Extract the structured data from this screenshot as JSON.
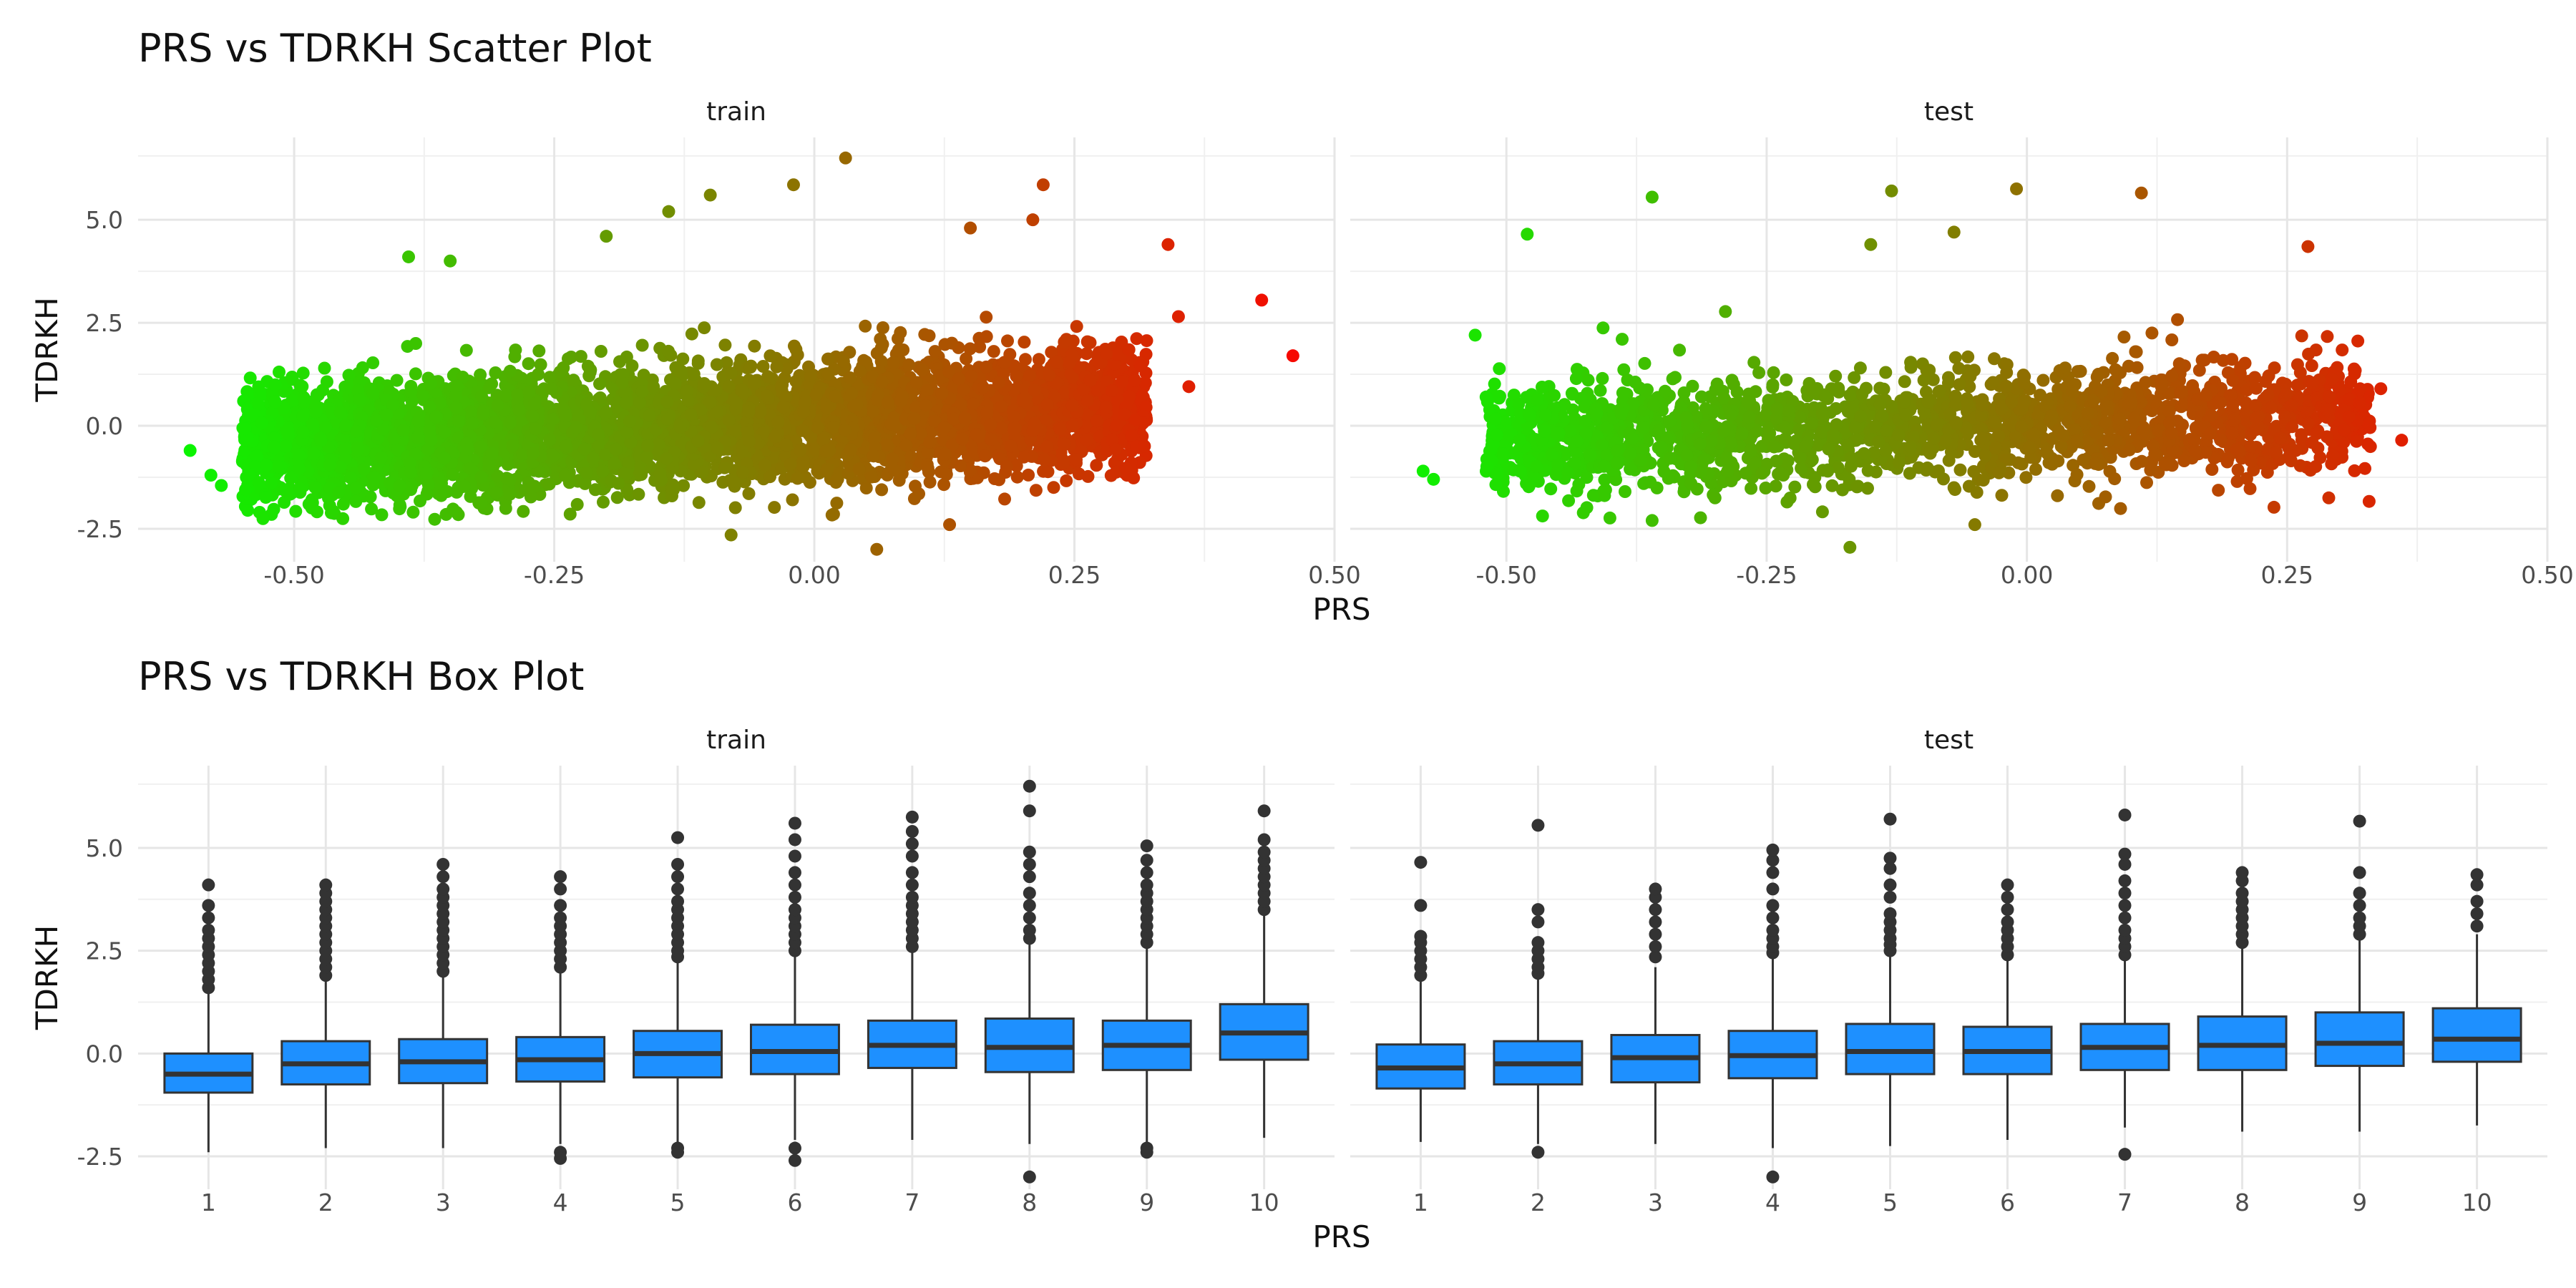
{
  "chart_data": [
    {
      "type": "scatter",
      "title": "PRS vs TDRKH Scatter Plot",
      "xlabel": "PRS",
      "ylabel": "TDRKH",
      "xlim": [
        -0.65,
        0.5
      ],
      "ylim": [
        -3.3,
        7.0
      ],
      "x_ticks": [
        "-0.50",
        "-0.25",
        "0.00",
        "0.25",
        "0.50"
      ],
      "y_ticks": [
        "-2.5",
        "0.0",
        "2.5",
        "5.0"
      ],
      "color_scale": {
        "low": "#00ff00",
        "high": "#ff0000",
        "mapped_to": "PRS"
      },
      "grid": true,
      "panels": [
        {
          "label": "train",
          "core": {
            "x_min": -0.55,
            "x_max": 0.32,
            "y_sd": 0.75,
            "trend": [
              -0.5,
              0.5
            ],
            "n": 4500
          },
          "points": [
            {
              "x": -0.6,
              "y": -0.6
            },
            {
              "x": -0.58,
              "y": -1.2
            },
            {
              "x": -0.57,
              "y": -1.45
            },
            {
              "x": 0.43,
              "y": 3.05
            },
            {
              "x": 0.46,
              "y": 1.7
            },
            {
              "x": 0.36,
              "y": 0.95
            },
            {
              "x": 0.35,
              "y": 2.65
            },
            {
              "x": 0.34,
              "y": 4.4
            },
            {
              "x": 0.03,
              "y": 6.5
            },
            {
              "x": -0.1,
              "y": 5.6
            },
            {
              "x": -0.02,
              "y": 5.85
            },
            {
              "x": 0.22,
              "y": 5.85
            },
            {
              "x": 0.21,
              "y": 5.0
            },
            {
              "x": 0.06,
              "y": -3.0
            },
            {
              "x": -0.08,
              "y": -2.65
            },
            {
              "x": 0.13,
              "y": -2.4
            },
            {
              "x": -0.14,
              "y": 5.2
            },
            {
              "x": -0.39,
              "y": 4.1
            },
            {
              "x": -0.35,
              "y": 4.0
            },
            {
              "x": -0.2,
              "y": 4.6
            },
            {
              "x": 0.15,
              "y": 4.8
            }
          ]
        },
        {
          "label": "test",
          "core": {
            "x_min": -0.52,
            "x_max": 0.33,
            "y_sd": 0.7,
            "trend": [
              -0.4,
              0.35
            ],
            "n": 2000
          },
          "points": [
            {
              "x": -0.58,
              "y": -1.1
            },
            {
              "x": -0.57,
              "y": -1.3
            },
            {
              "x": -0.53,
              "y": 2.2
            },
            {
              "x": -0.48,
              "y": 4.65
            },
            {
              "x": -0.36,
              "y": 5.55
            },
            {
              "x": -0.13,
              "y": 5.7
            },
            {
              "x": -0.01,
              "y": 5.75
            },
            {
              "x": 0.11,
              "y": 5.65
            },
            {
              "x": 0.27,
              "y": 4.35
            },
            {
              "x": 0.36,
              "y": -0.35
            },
            {
              "x": 0.34,
              "y": 0.9
            },
            {
              "x": 0.29,
              "y": -1.75
            },
            {
              "x": -0.17,
              "y": -2.95
            },
            {
              "x": -0.05,
              "y": -2.4
            },
            {
              "x": -0.36,
              "y": -2.3
            },
            {
              "x": -0.15,
              "y": 4.4
            },
            {
              "x": -0.07,
              "y": 4.7
            }
          ]
        }
      ]
    },
    {
      "type": "box",
      "title": "PRS vs TDRKH Box Plot",
      "xlabel": "PRS",
      "ylabel": "TDRKH",
      "ylim": [
        -3.3,
        7.0
      ],
      "y_ticks": [
        "-2.5",
        "0.0",
        "2.5",
        "5.0"
      ],
      "categories": [
        "1",
        "2",
        "3",
        "4",
        "5",
        "6",
        "7",
        "8",
        "9",
        "10"
      ],
      "fill_color": "#1e90ff",
      "grid": true,
      "panels": [
        {
          "label": "train",
          "boxes": [
            {
              "category": "1",
              "q1": -0.95,
              "median": -0.5,
              "q3": 0.0,
              "lower": -2.4,
              "upper": 1.45,
              "outliers": [
                1.6,
                1.8,
                2.0,
                2.2,
                2.4,
                2.6,
                2.8,
                3.0,
                3.3,
                3.6,
                4.1
              ]
            },
            {
              "category": "2",
              "q1": -0.75,
              "median": -0.25,
              "q3": 0.3,
              "lower": -2.3,
              "upper": 1.8,
              "outliers": [
                1.9,
                2.1,
                2.3,
                2.5,
                2.7,
                2.9,
                3.1,
                3.3,
                3.5,
                3.7,
                3.9,
                4.1
              ]
            },
            {
              "category": "3",
              "q1": -0.72,
              "median": -0.2,
              "q3": 0.35,
              "lower": -2.3,
              "upper": 1.9,
              "outliers": [
                2.0,
                2.2,
                2.4,
                2.6,
                2.8,
                3.0,
                3.2,
                3.4,
                3.6,
                3.8,
                4.0,
                4.3,
                4.6
              ]
            },
            {
              "category": "4",
              "q1": -0.68,
              "median": -0.15,
              "q3": 0.4,
              "lower": -2.2,
              "upper": 2.0,
              "outliers": [
                -2.4,
                -2.55,
                2.1,
                2.3,
                2.5,
                2.7,
                2.9,
                3.1,
                3.3,
                3.6,
                4.0,
                4.3
              ]
            },
            {
              "category": "5",
              "q1": -0.58,
              "median": 0.0,
              "q3": 0.55,
              "lower": -2.2,
              "upper": 2.2,
              "outliers": [
                -2.3,
                -2.4,
                2.35,
                2.5,
                2.7,
                2.9,
                3.1,
                3.3,
                3.5,
                3.7,
                4.0,
                4.3,
                4.6,
                5.25
              ]
            },
            {
              "category": "6",
              "q1": -0.5,
              "median": 0.05,
              "q3": 0.7,
              "lower": -2.1,
              "upper": 2.4,
              "outliers": [
                -2.3,
                -2.6,
                2.5,
                2.7,
                2.9,
                3.1,
                3.3,
                3.5,
                3.8,
                4.1,
                4.4,
                4.8,
                5.2,
                5.6
              ]
            },
            {
              "category": "7",
              "q1": -0.35,
              "median": 0.2,
              "q3": 0.8,
              "lower": -2.1,
              "upper": 2.5,
              "outliers": [
                2.6,
                2.8,
                3.0,
                3.2,
                3.4,
                3.6,
                3.8,
                4.1,
                4.4,
                4.8,
                5.1,
                5.4,
                5.75
              ]
            },
            {
              "category": "8",
              "q1": -0.45,
              "median": 0.15,
              "q3": 0.85,
              "lower": -2.2,
              "upper": 2.7,
              "outliers": [
                -3.0,
                2.8,
                3.0,
                3.3,
                3.6,
                3.9,
                4.3,
                4.6,
                4.9,
                5.9,
                6.5
              ]
            },
            {
              "category": "9",
              "q1": -0.4,
              "median": 0.2,
              "q3": 0.8,
              "lower": -2.2,
              "upper": 2.6,
              "outliers": [
                -2.3,
                -2.4,
                2.7,
                2.9,
                3.1,
                3.3,
                3.5,
                3.7,
                3.9,
                4.1,
                4.4,
                4.7,
                5.05
              ]
            },
            {
              "category": "10",
              "q1": -0.15,
              "median": 0.5,
              "q3": 1.2,
              "lower": -2.05,
              "upper": 3.4,
              "outliers": [
                3.5,
                3.7,
                3.9,
                4.1,
                4.3,
                4.5,
                4.7,
                4.9,
                5.2,
                5.9
              ]
            }
          ]
        },
        {
          "label": "test",
          "boxes": [
            {
              "category": "1",
              "q1": -0.85,
              "median": -0.35,
              "q3": 0.22,
              "lower": -2.15,
              "upper": 1.8,
              "outliers": [
                1.9,
                2.1,
                2.3,
                2.5,
                2.7,
                2.85,
                3.6,
                4.65
              ]
            },
            {
              "category": "2",
              "q1": -0.75,
              "median": -0.25,
              "q3": 0.3,
              "lower": -2.2,
              "upper": 1.85,
              "outliers": [
                -2.4,
                1.95,
                2.1,
                2.3,
                2.5,
                2.7,
                3.2,
                3.5,
                5.55
              ]
            },
            {
              "category": "3",
              "q1": -0.7,
              "median": -0.1,
              "q3": 0.45,
              "lower": -2.2,
              "upper": 2.1,
              "outliers": [
                2.35,
                2.6,
                2.9,
                3.2,
                3.5,
                3.8,
                4.0
              ]
            },
            {
              "category": "4",
              "q1": -0.6,
              "median": -0.05,
              "q3": 0.55,
              "lower": -2.3,
              "upper": 2.35,
              "outliers": [
                -3.0,
                2.45,
                2.6,
                2.8,
                3.0,
                3.3,
                3.6,
                4.0,
                4.4,
                4.7,
                4.95
              ]
            },
            {
              "category": "5",
              "q1": -0.5,
              "median": 0.05,
              "q3": 0.72,
              "lower": -2.25,
              "upper": 2.4,
              "outliers": [
                2.5,
                2.65,
                2.8,
                3.0,
                3.2,
                3.4,
                3.8,
                4.1,
                4.5,
                4.75,
                5.7
              ]
            },
            {
              "category": "6",
              "q1": -0.5,
              "median": 0.05,
              "q3": 0.65,
              "lower": -2.1,
              "upper": 2.3,
              "outliers": [
                2.4,
                2.6,
                2.8,
                3.0,
                3.2,
                3.5,
                3.8,
                4.1
              ]
            },
            {
              "category": "7",
              "q1": -0.4,
              "median": 0.15,
              "q3": 0.72,
              "lower": -1.8,
              "upper": 2.3,
              "outliers": [
                -2.45,
                2.4,
                2.6,
                2.8,
                3.0,
                3.3,
                3.6,
                3.9,
                4.2,
                4.6,
                4.85,
                5.8
              ]
            },
            {
              "category": "8",
              "q1": -0.4,
              "median": 0.2,
              "q3": 0.9,
              "lower": -1.9,
              "upper": 2.6,
              "outliers": [
                2.7,
                2.9,
                3.1,
                3.3,
                3.5,
                3.7,
                3.9,
                4.2,
                4.4
              ]
            },
            {
              "category": "9",
              "q1": -0.3,
              "median": 0.25,
              "q3": 1.0,
              "lower": -1.9,
              "upper": 2.8,
              "outliers": [
                2.9,
                3.1,
                3.3,
                3.6,
                3.9,
                4.4,
                5.65
              ]
            },
            {
              "category": "10",
              "q1": -0.2,
              "median": 0.35,
              "q3": 1.1,
              "lower": -1.75,
              "upper": 2.9,
              "outliers": [
                3.1,
                3.4,
                3.7,
                4.1,
                4.35
              ]
            }
          ]
        }
      ]
    }
  ]
}
